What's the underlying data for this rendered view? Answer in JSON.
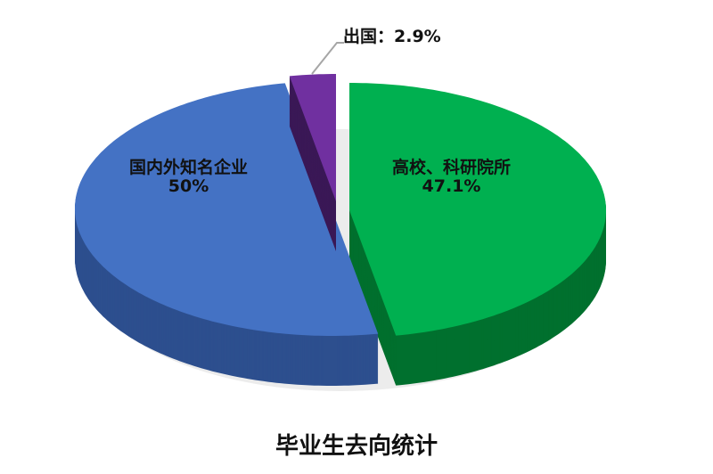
{
  "chart_data": {
    "type": "pie",
    "style": "3d-exploded",
    "title": "毕业生去向统计",
    "slices": [
      {
        "name": "高校、科研院所",
        "value": 47.1,
        "label": "47.1%",
        "color": "#00b050",
        "side_color": "#00702e"
      },
      {
        "name": "国内外知名企业",
        "value": 50,
        "label": "50%",
        "color": "#4472c4",
        "side_color": "#2d4f8e"
      },
      {
        "name": "出国",
        "value": 2.9,
        "label": "出国：2.9%",
        "color": "#7030a0",
        "side_color": "#3a1856"
      }
    ],
    "start_angle": "12 o'clock",
    "direction": "clockwise",
    "legend": "none"
  }
}
